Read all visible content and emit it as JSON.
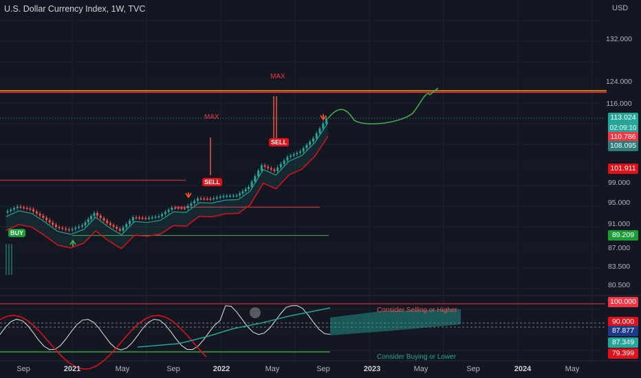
{
  "header": {
    "title": "U.S. Dollar Currency Index, 1W, TVC",
    "currency": "USD"
  },
  "price_axis": {
    "ticks": [
      "132.000",
      "124.000",
      "116.000",
      "99.000",
      "95.000",
      "91.000",
      "87.000",
      "83.500",
      "80.500"
    ],
    "price_tags": [
      {
        "value": "113.024",
        "sub": "02:09:10",
        "color": "#26a69a"
      },
      {
        "value": "110.786",
        "color": "#f23645"
      },
      {
        "value": "108.095",
        "color": "#2e7d7d"
      },
      {
        "value": "101.911",
        "color": "#e0111b"
      },
      {
        "value": "89.209",
        "color": "#1b9e36"
      }
    ],
    "osc_tags": [
      {
        "value": "100.000",
        "color": "#f23645"
      },
      {
        "value": "90.000",
        "color": "#e0111b"
      },
      {
        "value": "87.877",
        "color": "#1e3a8a"
      },
      {
        "value": "87.349",
        "color": "#26a69a"
      },
      {
        "value": "79.399",
        "color": "#e0111b"
      }
    ]
  },
  "time_axis": {
    "ticks": [
      {
        "label": "Sep",
        "bold": false
      },
      {
        "label": "2021",
        "bold": true
      },
      {
        "label": "May",
        "bold": false
      },
      {
        "label": "Sep",
        "bold": false
      },
      {
        "label": "2022",
        "bold": true
      },
      {
        "label": "May",
        "bold": false
      },
      {
        "label": "Sep",
        "bold": false
      },
      {
        "label": "2023",
        "bold": true
      },
      {
        "label": "May",
        "bold": false
      },
      {
        "label": "Sep",
        "bold": false
      },
      {
        "label": "2024",
        "bold": true
      },
      {
        "label": "May",
        "bold": false
      }
    ]
  },
  "annotations": {
    "max_top": "MAX",
    "max_mid": "MAX",
    "sell_1": "SELL",
    "sell_2": "SELL",
    "buy": "BUY",
    "osc_sell": "Consider Selling or Higher",
    "osc_buy": "Consider Buying or Lower"
  },
  "colors": {
    "background": "#131722",
    "up": "#26a69a",
    "down": "#ef5350",
    "resistance": "#ff9800",
    "projection": "#4caf50"
  },
  "chart_data": {
    "type": "line",
    "title": "U.S. Dollar Currency Index, 1W, TVC",
    "x_ticks": [
      "Sep",
      "2021",
      "May",
      "Sep",
      "2022",
      "May",
      "Sep",
      "2023",
      "May",
      "Sep",
      "2024",
      "May"
    ],
    "y_ticks": [
      80.5,
      83.5,
      87,
      91,
      95,
      99,
      116,
      124,
      132
    ],
    "series": [
      {
        "values": [
          {
            "date": "2020-08",
            "close": 93.3
          },
          {
            "date": "2020-09",
            "close": 94.4
          },
          {
            "date": "2020-10",
            "close": 93.9
          },
          {
            "date": "2020-11",
            "close": 92.3
          },
          {
            "date": "2020-12",
            "close": 90.6
          },
          {
            "date": "2021-01",
            "close": 90.1
          },
          {
            "date": "2021-02",
            "close": 90.9
          },
          {
            "date": "2021-03",
            "close": 93.2
          },
          {
            "date": "2021-04",
            "close": 91.3
          },
          {
            "date": "2021-05",
            "close": 90.0
          },
          {
            "date": "2021-06",
            "close": 92.4
          },
          {
            "date": "2021-07",
            "close": 92.2
          },
          {
            "date": "2021-08",
            "close": 92.6
          },
          {
            "date": "2021-09",
            "close": 94.2
          },
          {
            "date": "2021-10",
            "close": 94.1
          },
          {
            "date": "2021-11",
            "close": 96.0
          },
          {
            "date": "2021-12",
            "close": 95.9
          },
          {
            "date": "2022-01",
            "close": 96.5
          },
          {
            "date": "2022-02",
            "close": 96.6
          },
          {
            "date": "2022-03",
            "close": 98.3
          },
          {
            "date": "2022-04",
            "close": 102.9
          },
          {
            "date": "2022-05",
            "close": 101.7
          },
          {
            "date": "2022-06",
            "close": 104.7
          },
          {
            "date": "2022-07",
            "close": 105.9
          },
          {
            "date": "2022-08",
            "close": 108.7
          },
          {
            "date": "2022-09",
            "close": 113.0
          }
        ]
      }
    ],
    "last_price": 113.024,
    "levels": {
      "resistance_high": 121.0,
      "resistance_low": 120.4,
      "red_level": 99.7,
      "red_level_2": 94.3,
      "green_support": 89.209
    },
    "projection_target": 120.5
  }
}
